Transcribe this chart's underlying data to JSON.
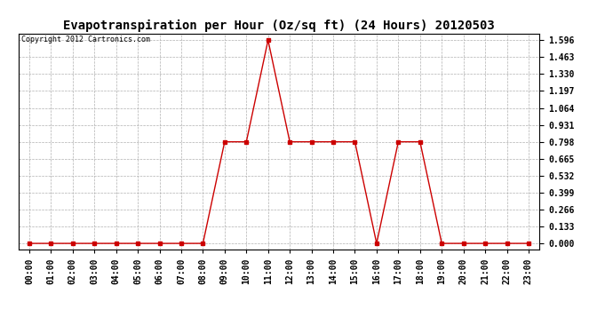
{
  "title": "Evapotranspiration per Hour (Oz/sq ft) (24 Hours) 20120503",
  "copyright": "Copyright 2012 Cartronics.com",
  "hours": [
    0,
    1,
    2,
    3,
    4,
    5,
    6,
    7,
    8,
    9,
    10,
    11,
    12,
    13,
    14,
    15,
    16,
    17,
    18,
    19,
    20,
    21,
    22,
    23
  ],
  "values": [
    0.0,
    0.0,
    0.0,
    0.0,
    0.0,
    0.0,
    0.0,
    0.0,
    0.0,
    0.798,
    0.798,
    1.596,
    0.798,
    0.798,
    0.798,
    0.798,
    0.0,
    0.798,
    0.798,
    0.0,
    0.0,
    0.0,
    0.0,
    0.0
  ],
  "yticks": [
    0.0,
    0.133,
    0.266,
    0.399,
    0.532,
    0.665,
    0.798,
    0.931,
    1.064,
    1.197,
    1.33,
    1.463,
    1.596
  ],
  "ylim_min": -0.05,
  "ylim_max": 1.65,
  "xlim_min": -0.5,
  "xlim_max": 23.5,
  "line_color": "#cc0000",
  "marker": "s",
  "marker_size": 2.5,
  "bg_color": "#ffffff",
  "grid_color": "#b0b0b0",
  "title_fontsize": 10,
  "tick_label_fontsize": 7,
  "copyright_fontsize": 6
}
